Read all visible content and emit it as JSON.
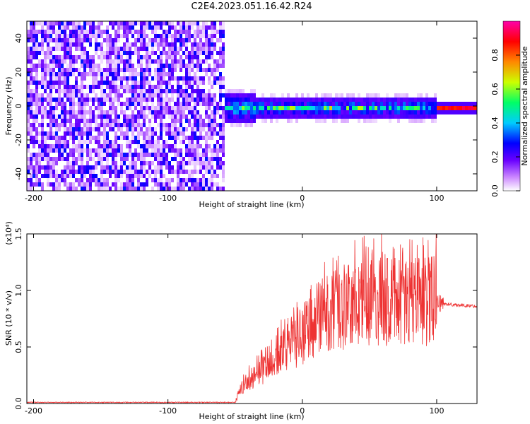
{
  "title": "C2E4.2023.051.16.42.R24",
  "chart_data": [
    {
      "type": "heatmap",
      "xlabel": "Height of straight line (km)",
      "ylabel": "Frequency (Hz)",
      "xlim": [
        -205,
        130
      ],
      "ylim": [
        -50,
        50
      ],
      "xticks": [
        "-200",
        "-100",
        "0",
        "100"
      ],
      "yticks": [
        "-40",
        "-20",
        "0",
        "20",
        "40"
      ],
      "colorbar": {
        "label": "Normalized spectral amplitude",
        "range": [
          0,
          1
        ],
        "ticks": [
          "0.0",
          "0.2",
          "0.4",
          "0.6",
          "0.8"
        ],
        "colors": [
          "#ffffff",
          "#cc88ff",
          "#6a00ff",
          "#0000ff",
          "#00ccff",
          "#00ff66",
          "#ccff00",
          "#ff8800",
          "#ff0000",
          "#ff00aa"
        ]
      },
      "regions": [
        {
          "x": [
            -205,
            -58
          ],
          "description": "broadband noise across all frequencies"
        },
        {
          "x": [
            -58,
            100
          ],
          "center_hz": 0,
          "half_width_hz": 6
        },
        {
          "x": [
            100,
            130
          ],
          "center_hz": 0,
          "half_width_hz": 1
        }
      ]
    },
    {
      "type": "line",
      "xlabel": "Height of straight line (km)",
      "ylabel": "SNR (10 * v/v)",
      "yunit": "(x10⁴)",
      "xlim": [
        -205,
        130
      ],
      "ylim": [
        0,
        1.5
      ],
      "xticks": [
        "-200",
        "-100",
        "0",
        "100"
      ],
      "yticks": [
        "0.0",
        "0.5",
        "1.0",
        "1.5"
      ],
      "color": "#ee3333",
      "envelope": [
        {
          "x": -205,
          "y": 0.01
        },
        {
          "x": -50,
          "y": 0.01
        },
        {
          "x": -45,
          "y": 0.15
        },
        {
          "x": -35,
          "y": 0.25
        },
        {
          "x": -20,
          "y": 0.4
        },
        {
          "x": -10,
          "y": 0.5
        },
        {
          "x": 0,
          "y": 0.6
        },
        {
          "x": 10,
          "y": 0.7
        },
        {
          "x": 20,
          "y": 0.8
        },
        {
          "x": 40,
          "y": 0.88
        },
        {
          "x": 60,
          "y": 0.92
        },
        {
          "x": 80,
          "y": 0.92
        },
        {
          "x": 100,
          "y": 0.9
        },
        {
          "x": 105,
          "y": 0.88
        },
        {
          "x": 130,
          "y": 0.86
        }
      ]
    }
  ]
}
